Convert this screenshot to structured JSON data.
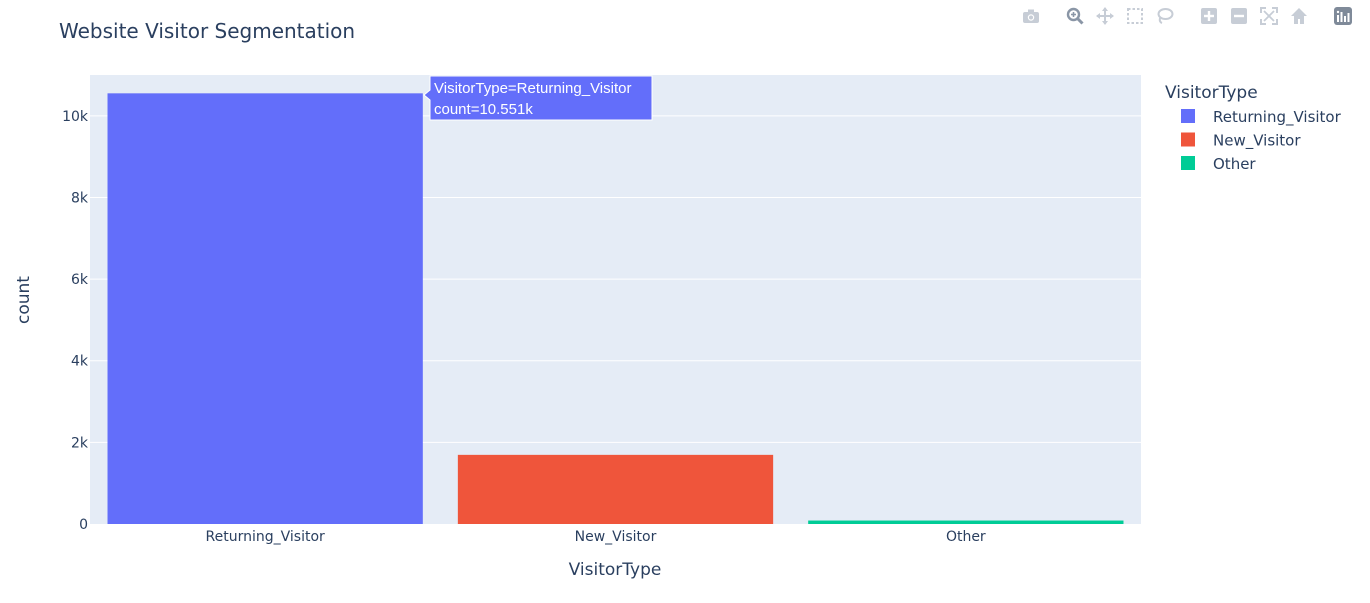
{
  "chart_data": {
    "type": "bar",
    "title": "Website Visitor Segmentation",
    "xlabel": "VisitorType",
    "ylabel": "count",
    "categories": [
      "Returning_Visitor",
      "New_Visitor",
      "Other"
    ],
    "values": [
      10551,
      1694,
      85
    ],
    "colors": [
      "#636efa",
      "#ef553b",
      "#00cc96"
    ],
    "ylim": [
      0,
      11000
    ],
    "yticks": [
      0,
      2000,
      4000,
      6000,
      8000,
      10000
    ],
    "ytick_labels": [
      "0",
      "2k",
      "4k",
      "6k",
      "8k",
      "10k"
    ],
    "grid": true,
    "legend": {
      "title": "VisitorType",
      "placement": "right",
      "entries": [
        "Returning_Visitor",
        "New_Visitor",
        "Other"
      ]
    },
    "tooltip": {
      "line1": "VisitorType=Returning_Visitor",
      "line2": "count=10.551k",
      "color": "#636efa"
    }
  },
  "modebar": {
    "icons": [
      "camera-icon",
      "zoom-icon",
      "pan-icon",
      "box-select-icon",
      "lasso-select-icon",
      "zoom-in-icon",
      "zoom-out-icon",
      "autoscale-icon",
      "reset-axes-icon",
      "plotly-logo-icon"
    ]
  }
}
